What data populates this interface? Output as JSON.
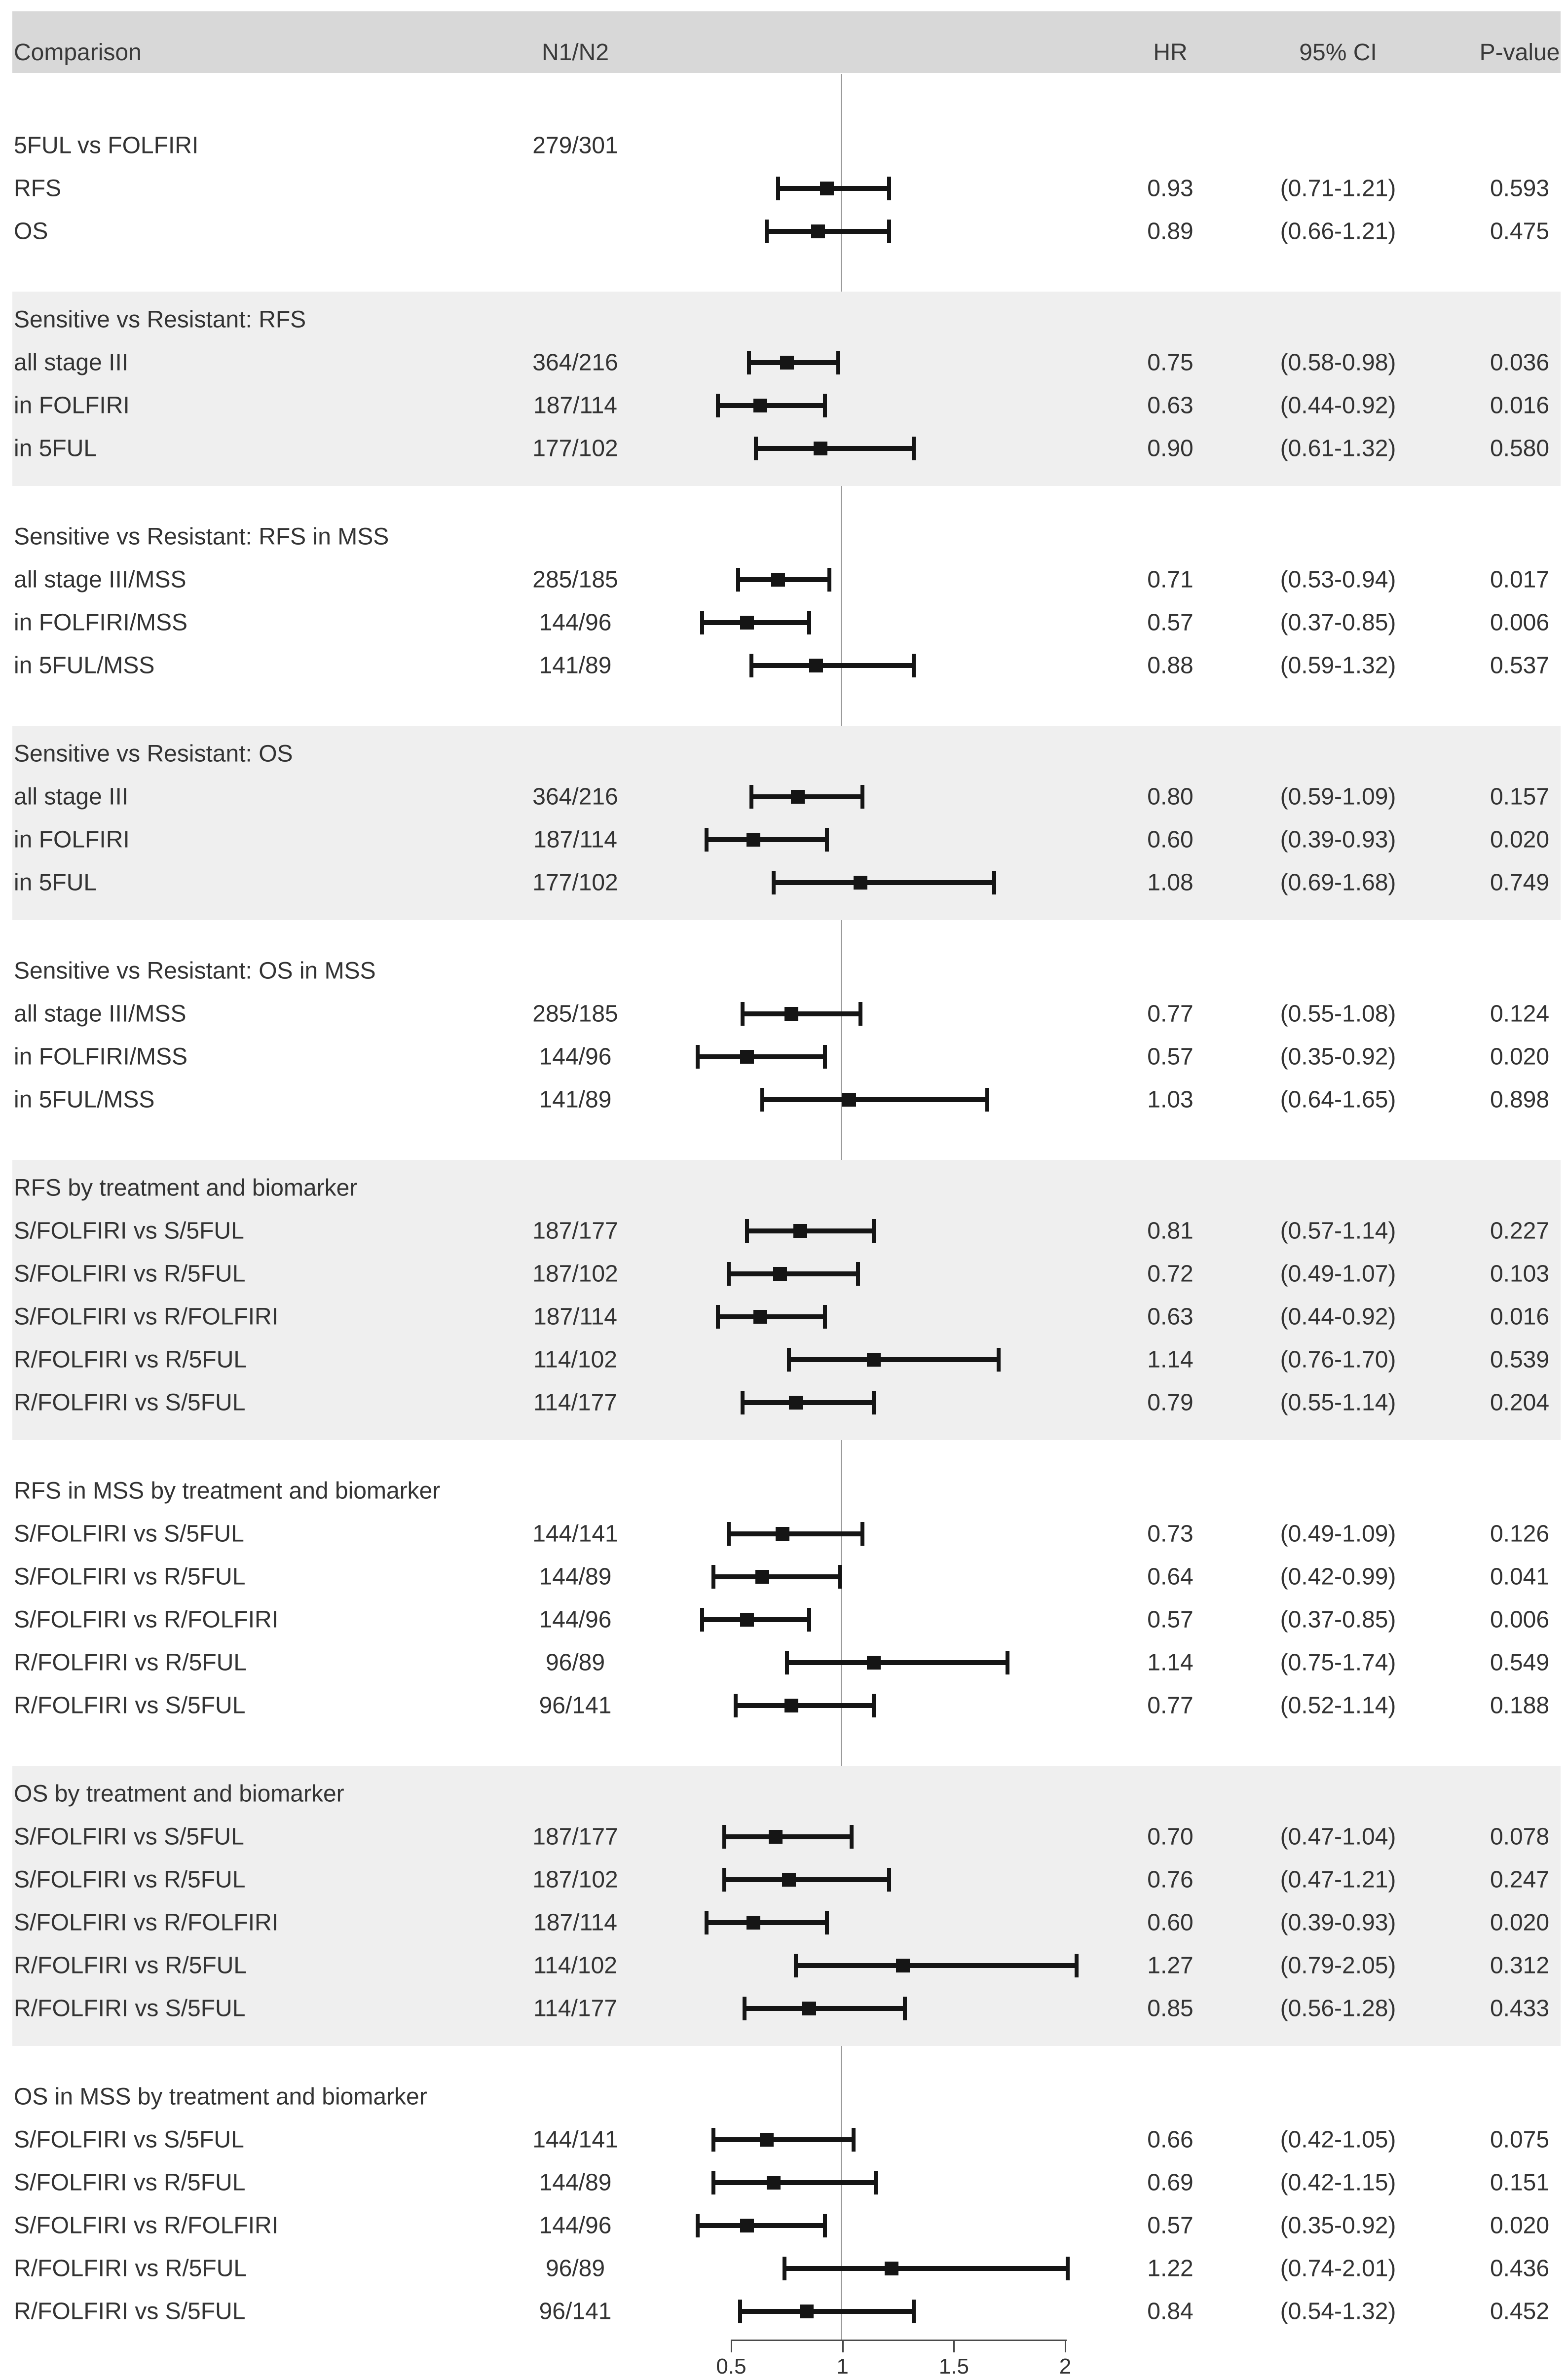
{
  "header": {
    "comparison": "Comparison",
    "n1n2": "N1/N2",
    "hr": "HR",
    "ci": "95% CI",
    "p": "P-value"
  },
  "colors": {
    "header_band": "#d8d8d8",
    "shaded_section": "#efefef",
    "marker": "#151515",
    "reference_line": "#9a9a9a",
    "text": "#333333"
  },
  "chart_data": {
    "type": "forest",
    "title": "",
    "xlabel": "",
    "x_axis": {
      "scale": "linear",
      "min": 0.5,
      "max": 2,
      "tick_values": [
        0.5,
        1,
        1.5,
        2
      ],
      "tick_labels": [
        "0.5",
        "1",
        "1.5",
        "2"
      ],
      "reference_line": 1
    },
    "columns": [
      "Comparison",
      "N1/N2",
      "HR",
      "95% CI",
      "P-value"
    ],
    "sections": [
      {
        "title": "5FUL vs FOLFIRI",
        "n": "279/301",
        "shaded": false,
        "rows": [
          {
            "label": "RFS",
            "n": "",
            "hr": 0.93,
            "lo": 0.71,
            "hi": 1.21,
            "hr_text": "0.93",
            "ci_text": "(0.71-1.21)",
            "p_text": "0.593"
          },
          {
            "label": "OS",
            "n": "",
            "hr": 0.89,
            "lo": 0.66,
            "hi": 1.21,
            "hr_text": "0.89",
            "ci_text": "(0.66-1.21)",
            "p_text": "0.475"
          }
        ]
      },
      {
        "title": "Sensitive vs Resistant: RFS",
        "n": "",
        "shaded": true,
        "rows": [
          {
            "label": "all stage III",
            "n": "364/216",
            "hr": 0.75,
            "lo": 0.58,
            "hi": 0.98,
            "hr_text": "0.75",
            "ci_text": "(0.58-0.98)",
            "p_text": "0.036"
          },
          {
            "label": "in FOLFIRI",
            "n": "187/114",
            "hr": 0.63,
            "lo": 0.44,
            "hi": 0.92,
            "hr_text": "0.63",
            "ci_text": "(0.44-0.92)",
            "p_text": "0.016"
          },
          {
            "label": "in 5FUL",
            "n": "177/102",
            "hr": 0.9,
            "lo": 0.61,
            "hi": 1.32,
            "hr_text": "0.90",
            "ci_text": "(0.61-1.32)",
            "p_text": "0.580"
          }
        ]
      },
      {
        "title": "Sensitive vs Resistant: RFS in MSS",
        "n": "",
        "shaded": false,
        "rows": [
          {
            "label": "all stage III/MSS",
            "n": "285/185",
            "hr": 0.71,
            "lo": 0.53,
            "hi": 0.94,
            "hr_text": "0.71",
            "ci_text": "(0.53-0.94)",
            "p_text": "0.017"
          },
          {
            "label": "in FOLFIRI/MSS",
            "n": "144/96",
            "hr": 0.57,
            "lo": 0.37,
            "hi": 0.85,
            "hr_text": "0.57",
            "ci_text": "(0.37-0.85)",
            "p_text": "0.006"
          },
          {
            "label": "in 5FUL/MSS",
            "n": "141/89",
            "hr": 0.88,
            "lo": 0.59,
            "hi": 1.32,
            "hr_text": "0.88",
            "ci_text": "(0.59-1.32)",
            "p_text": "0.537"
          }
        ]
      },
      {
        "title": "Sensitive vs Resistant: OS",
        "n": "",
        "shaded": true,
        "rows": [
          {
            "label": "all stage III",
            "n": "364/216",
            "hr": 0.8,
            "lo": 0.59,
            "hi": 1.09,
            "hr_text": "0.80",
            "ci_text": "(0.59-1.09)",
            "p_text": "0.157"
          },
          {
            "label": "in FOLFIRI",
            "n": "187/114",
            "hr": 0.6,
            "lo": 0.39,
            "hi": 0.93,
            "hr_text": "0.60",
            "ci_text": "(0.39-0.93)",
            "p_text": "0.020"
          },
          {
            "label": "in 5FUL",
            "n": "177/102",
            "hr": 1.08,
            "lo": 0.69,
            "hi": 1.68,
            "hr_text": "1.08",
            "ci_text": "(0.69-1.68)",
            "p_text": "0.749"
          }
        ]
      },
      {
        "title": "Sensitive vs Resistant: OS in MSS",
        "n": "",
        "shaded": false,
        "rows": [
          {
            "label": "all stage III/MSS",
            "n": "285/185",
            "hr": 0.77,
            "lo": 0.55,
            "hi": 1.08,
            "hr_text": "0.77",
            "ci_text": "(0.55-1.08)",
            "p_text": "0.124"
          },
          {
            "label": "in FOLFIRI/MSS",
            "n": "144/96",
            "hr": 0.57,
            "lo": 0.35,
            "hi": 0.92,
            "hr_text": "0.57",
            "ci_text": "(0.35-0.92)",
            "p_text": "0.020"
          },
          {
            "label": "in 5FUL/MSS",
            "n": "141/89",
            "hr": 1.03,
            "lo": 0.64,
            "hi": 1.65,
            "hr_text": "1.03",
            "ci_text": "(0.64-1.65)",
            "p_text": "0.898"
          }
        ]
      },
      {
        "title": "RFS by treatment and biomarker",
        "n": "",
        "shaded": true,
        "rows": [
          {
            "label": "S/FOLFIRI vs S/5FUL",
            "n": "187/177",
            "hr": 0.81,
            "lo": 0.57,
            "hi": 1.14,
            "hr_text": "0.81",
            "ci_text": "(0.57-1.14)",
            "p_text": "0.227"
          },
          {
            "label": "S/FOLFIRI vs R/5FUL",
            "n": "187/102",
            "hr": 0.72,
            "lo": 0.49,
            "hi": 1.07,
            "hr_text": "0.72",
            "ci_text": "(0.49-1.07)",
            "p_text": "0.103"
          },
          {
            "label": "S/FOLFIRI vs R/FOLFIRI",
            "n": "187/114",
            "hr": 0.63,
            "lo": 0.44,
            "hi": 0.92,
            "hr_text": "0.63",
            "ci_text": "(0.44-0.92)",
            "p_text": "0.016"
          },
          {
            "label": "R/FOLFIRI vs R/5FUL",
            "n": "114/102",
            "hr": 1.14,
            "lo": 0.76,
            "hi": 1.7,
            "hr_text": "1.14",
            "ci_text": "(0.76-1.70)",
            "p_text": "0.539"
          },
          {
            "label": "R/FOLFIRI vs S/5FUL",
            "n": "114/177",
            "hr": 0.79,
            "lo": 0.55,
            "hi": 1.14,
            "hr_text": "0.79",
            "ci_text": "(0.55-1.14)",
            "p_text": "0.204"
          }
        ]
      },
      {
        "title": "RFS in MSS by treatment and biomarker",
        "n": "",
        "shaded": false,
        "rows": [
          {
            "label": "S/FOLFIRI vs S/5FUL",
            "n": "144/141",
            "hr": 0.73,
            "lo": 0.49,
            "hi": 1.09,
            "hr_text": "0.73",
            "ci_text": "(0.49-1.09)",
            "p_text": "0.126"
          },
          {
            "label": "S/FOLFIRI vs R/5FUL",
            "n": "144/89",
            "hr": 0.64,
            "lo": 0.42,
            "hi": 0.99,
            "hr_text": "0.64",
            "ci_text": "(0.42-0.99)",
            "p_text": "0.041"
          },
          {
            "label": "S/FOLFIRI vs R/FOLFIRI",
            "n": "144/96",
            "hr": 0.57,
            "lo": 0.37,
            "hi": 0.85,
            "hr_text": "0.57",
            "ci_text": "(0.37-0.85)",
            "p_text": "0.006"
          },
          {
            "label": "R/FOLFIRI vs R/5FUL",
            "n": "96/89",
            "hr": 1.14,
            "lo": 0.75,
            "hi": 1.74,
            "hr_text": "1.14",
            "ci_text": "(0.75-1.74)",
            "p_text": "0.549"
          },
          {
            "label": "R/FOLFIRI vs S/5FUL",
            "n": "96/141",
            "hr": 0.77,
            "lo": 0.52,
            "hi": 1.14,
            "hr_text": "0.77",
            "ci_text": "(0.52-1.14)",
            "p_text": "0.188"
          }
        ]
      },
      {
        "title": "OS by treatment and biomarker",
        "n": "",
        "shaded": true,
        "rows": [
          {
            "label": "S/FOLFIRI vs S/5FUL",
            "n": "187/177",
            "hr": 0.7,
            "lo": 0.47,
            "hi": 1.04,
            "hr_text": "0.70",
            "ci_text": "(0.47-1.04)",
            "p_text": "0.078"
          },
          {
            "label": "S/FOLFIRI vs R/5FUL",
            "n": "187/102",
            "hr": 0.76,
            "lo": 0.47,
            "hi": 1.21,
            "hr_text": "0.76",
            "ci_text": "(0.47-1.21)",
            "p_text": "0.247"
          },
          {
            "label": "S/FOLFIRI vs R/FOLFIRI",
            "n": "187/114",
            "hr": 0.6,
            "lo": 0.39,
            "hi": 0.93,
            "hr_text": "0.60",
            "ci_text": "(0.39-0.93)",
            "p_text": "0.020"
          },
          {
            "label": "R/FOLFIRI vs R/5FUL",
            "n": "114/102",
            "hr": 1.27,
            "lo": 0.79,
            "hi": 2.05,
            "hr_text": "1.27",
            "ci_text": "(0.79-2.05)",
            "p_text": "0.312"
          },
          {
            "label": "R/FOLFIRI vs S/5FUL",
            "n": "114/177",
            "hr": 0.85,
            "lo": 0.56,
            "hi": 1.28,
            "hr_text": "0.85",
            "ci_text": "(0.56-1.28)",
            "p_text": "0.433"
          }
        ]
      },
      {
        "title": "OS in MSS by treatment and biomarker",
        "n": "",
        "shaded": false,
        "rows": [
          {
            "label": "S/FOLFIRI vs S/5FUL",
            "n": "144/141",
            "hr": 0.66,
            "lo": 0.42,
            "hi": 1.05,
            "hr_text": "0.66",
            "ci_text": "(0.42-1.05)",
            "p_text": "0.075"
          },
          {
            "label": "S/FOLFIRI vs R/5FUL",
            "n": "144/89",
            "hr": 0.69,
            "lo": 0.42,
            "hi": 1.15,
            "hr_text": "0.69",
            "ci_text": "(0.42-1.15)",
            "p_text": "0.151"
          },
          {
            "label": "S/FOLFIRI vs R/FOLFIRI",
            "n": "144/96",
            "hr": 0.57,
            "lo": 0.35,
            "hi": 0.92,
            "hr_text": "0.57",
            "ci_text": "(0.35-0.92)",
            "p_text": "0.020"
          },
          {
            "label": "R/FOLFIRI vs R/5FUL",
            "n": "96/89",
            "hr": 1.22,
            "lo": 0.74,
            "hi": 2.01,
            "hr_text": "1.22",
            "ci_text": "(0.74-2.01)",
            "p_text": "0.436"
          },
          {
            "label": "R/FOLFIRI vs S/5FUL",
            "n": "96/141",
            "hr": 0.84,
            "lo": 0.54,
            "hi": 1.32,
            "hr_text": "0.84",
            "ci_text": "(0.54-1.32)",
            "p_text": "0.452"
          }
        ]
      }
    ]
  }
}
